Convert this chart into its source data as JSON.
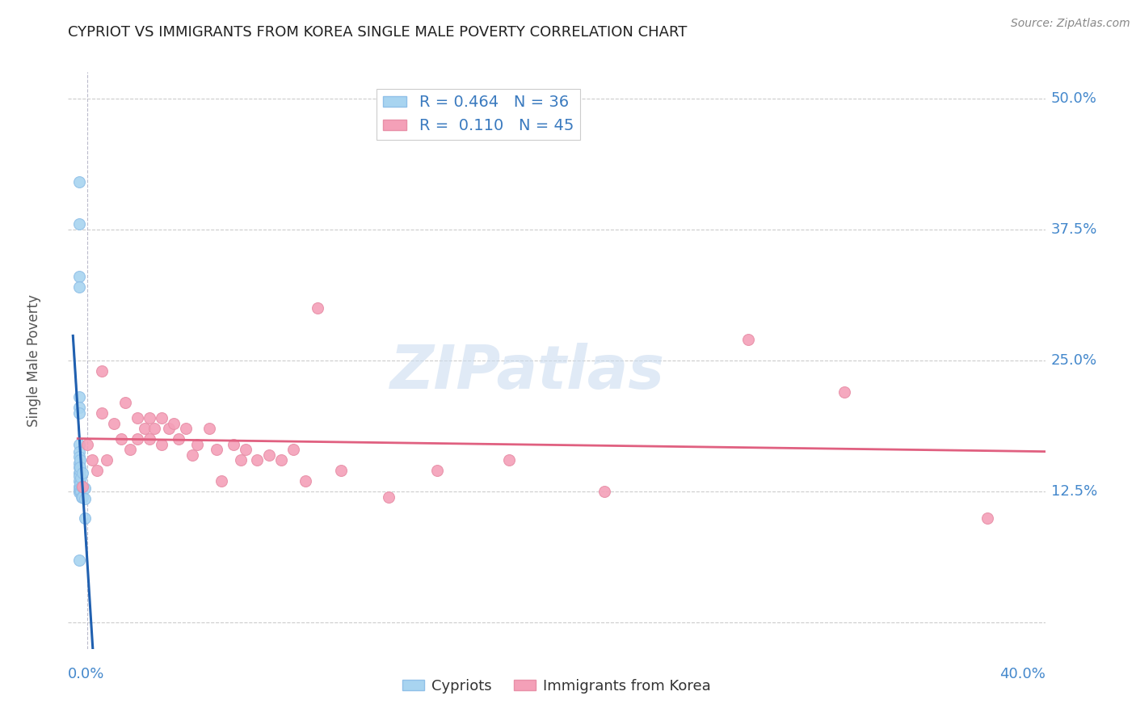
{
  "title": "CYPRIOT VS IMMIGRANTS FROM KOREA SINGLE MALE POVERTY CORRELATION CHART",
  "source": "Source: ZipAtlas.com",
  "ylabel": "Single Male Poverty",
  "xmin": -0.004,
  "xmax": 0.404,
  "ymin": -0.025,
  "ymax": 0.525,
  "cypriot_color": "#a8d4f0",
  "korea_color": "#f4a0b8",
  "cypriot_edge_color": "#90c0e8",
  "korea_edge_color": "#e890a8",
  "cypriot_R": 0.464,
  "cypriot_N": 36,
  "korea_R": 0.11,
  "korea_N": 45,
  "cypriot_line_color": "#2060b0",
  "korea_line_color": "#e06080",
  "watermark_color": "#ccddf0",
  "cypriot_x": [
    0.0005,
    0.0005,
    0.0005,
    0.0005,
    0.0005,
    0.0005,
    0.0005,
    0.0005,
    0.0005,
    0.0005,
    0.0005,
    0.0005,
    0.0005,
    0.0005,
    0.0005,
    0.0005,
    0.0005,
    0.0005,
    0.0008,
    0.0008,
    0.001,
    0.001,
    0.001,
    0.001,
    0.001,
    0.0012,
    0.0012,
    0.0015,
    0.0015,
    0.002,
    0.002,
    0.002,
    0.003,
    0.003,
    0.003,
    0.0005
  ],
  "cypriot_y": [
    0.42,
    0.38,
    0.33,
    0.32,
    0.215,
    0.205,
    0.2,
    0.17,
    0.163,
    0.158,
    0.152,
    0.148,
    0.143,
    0.14,
    0.135,
    0.13,
    0.127,
    0.124,
    0.145,
    0.133,
    0.155,
    0.148,
    0.132,
    0.128,
    0.125,
    0.138,
    0.125,
    0.13,
    0.12,
    0.143,
    0.13,
    0.12,
    0.128,
    0.118,
    0.1,
    0.06
  ],
  "korea_x": [
    0.002,
    0.004,
    0.006,
    0.008,
    0.01,
    0.01,
    0.012,
    0.015,
    0.018,
    0.02,
    0.022,
    0.025,
    0.025,
    0.028,
    0.03,
    0.03,
    0.032,
    0.035,
    0.035,
    0.038,
    0.04,
    0.042,
    0.045,
    0.048,
    0.05,
    0.055,
    0.058,
    0.06,
    0.065,
    0.068,
    0.07,
    0.075,
    0.08,
    0.085,
    0.09,
    0.095,
    0.1,
    0.11,
    0.13,
    0.15,
    0.18,
    0.22,
    0.28,
    0.32,
    0.38
  ],
  "korea_y": [
    0.13,
    0.17,
    0.155,
    0.145,
    0.24,
    0.2,
    0.155,
    0.19,
    0.175,
    0.21,
    0.165,
    0.195,
    0.175,
    0.185,
    0.195,
    0.175,
    0.185,
    0.195,
    0.17,
    0.185,
    0.19,
    0.175,
    0.185,
    0.16,
    0.17,
    0.185,
    0.165,
    0.135,
    0.17,
    0.155,
    0.165,
    0.155,
    0.16,
    0.155,
    0.165,
    0.135,
    0.3,
    0.145,
    0.12,
    0.145,
    0.155,
    0.125,
    0.27,
    0.22,
    0.1
  ]
}
